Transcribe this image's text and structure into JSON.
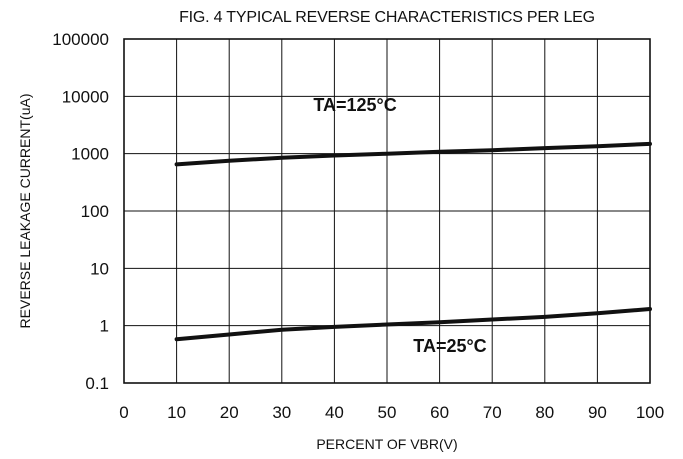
{
  "chart_data": {
    "type": "line",
    "title": "FIG. 4 TYPICAL REVERSE CHARACTERISTICS PER LEG",
    "xlabel": "PERCENT OF VBR(V)",
    "ylabel": "REVERSE LEAKAGE CURRENT(uA)",
    "xlim": [
      0,
      100
    ],
    "ylim": [
      0.1,
      100000
    ],
    "y_scale": "log",
    "grid": true,
    "x_ticks": [
      "0",
      "10",
      "20",
      "30",
      "40",
      "50",
      "60",
      "70",
      "80",
      "90",
      "100"
    ],
    "y_ticks": [
      "0.1",
      "1",
      "10",
      "100",
      "1000",
      "10000",
      "100000"
    ],
    "series": [
      {
        "name": "TA=125°C",
        "label_pos": [
          36,
          5500
        ],
        "x": [
          10,
          20,
          30,
          40,
          50,
          60,
          70,
          80,
          90,
          100
        ],
        "y": [
          650,
          750,
          850,
          930,
          1000,
          1080,
          1150,
          1250,
          1350,
          1480
        ]
      },
      {
        "name": "TA=25°C",
        "label_pos": [
          55,
          0.35
        ],
        "x": [
          10,
          20,
          30,
          40,
          50,
          60,
          70,
          80,
          90,
          100
        ],
        "y": [
          0.58,
          0.7,
          0.85,
          0.95,
          1.05,
          1.15,
          1.28,
          1.42,
          1.65,
          1.95
        ]
      }
    ],
    "colors": {
      "line": "#111111",
      "grid": "#111111",
      "background": "#ffffff"
    }
  }
}
